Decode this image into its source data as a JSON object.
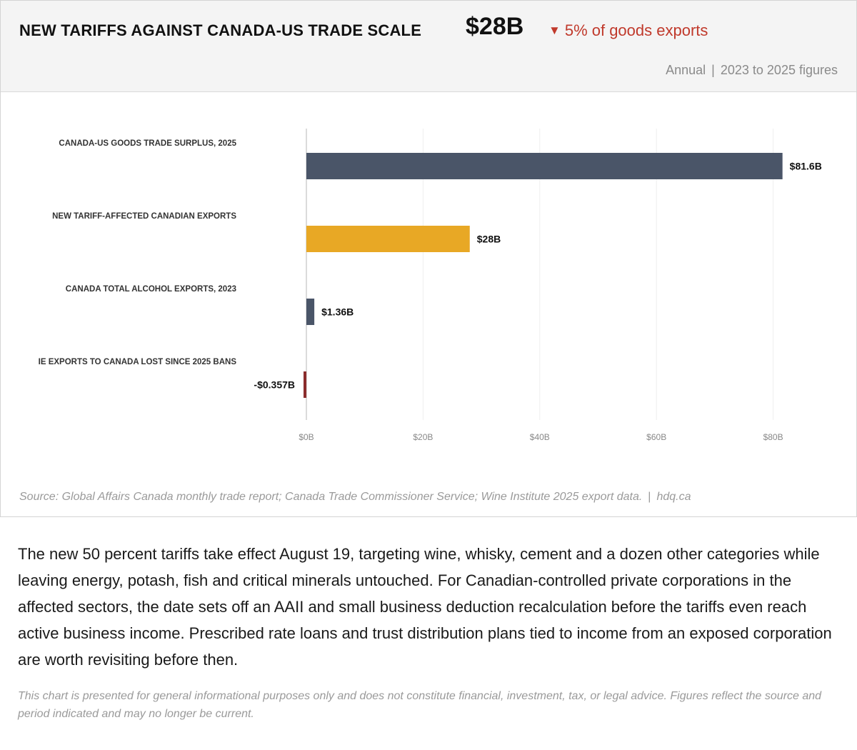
{
  "header": {
    "title": "NEW TARIFFS AGAINST CANADA-US TRADE SCALE",
    "value": "$28B",
    "delta_arrow": "▼",
    "delta_text": "5% of goods exports",
    "period": "Annual",
    "range": "2023 to 2025 figures",
    "delta_color": "#c0392b"
  },
  "chart_data": {
    "type": "bar",
    "orientation": "horizontal",
    "categories": [
      "CANADA-US GOODS TRADE SURPLUS, 2025",
      "NEW TARIFF-AFFECTED CANADIAN EXPORTS",
      "CANADA TOTAL ALCOHOL EXPORTS, 2023",
      "IE EXPORTS TO CANADA LOST SINCE 2025 BANS"
    ],
    "values": [
      81.6,
      28,
      1.36,
      -0.357
    ],
    "value_labels": [
      "$81.6B",
      "$28B",
      "$1.36B",
      "-$0.357B"
    ],
    "colors": [
      "#4a5568",
      "#e8a825",
      "#4a5568",
      "#8b2c2c"
    ],
    "xlim": [
      0,
      90
    ],
    "ticks": [
      0,
      20,
      40,
      60,
      80
    ],
    "tick_labels": [
      "$0B",
      "$20B",
      "$40B",
      "$60B",
      "$80B"
    ],
    "grid": true,
    "title": "",
    "xlabel": "",
    "ylabel": ""
  },
  "source": {
    "text": "Source: Global Affairs Canada monthly trade report; Canada Trade Commissioner Service; Wine Institute 2025 export data.",
    "sep": "|",
    "site": "hdq.ca"
  },
  "body_text": "The new 50 percent tariffs take effect August 19, targeting wine, whisky, cement and a dozen other categories while leaving energy, potash, fish and critical minerals untouched. For Canadian-controlled private corporations in the affected sectors, the date sets off an AAII and small business deduction recalculation before the tariffs even reach active business income. Prescribed rate loans and trust distribution plans tied to income from an exposed corporation are worth revisiting before then.",
  "disclaimer": "This chart is presented for general informational purposes only and does not constitute financial, investment, tax, or legal advice. Figures reflect the source and period indicated and may no longer be current."
}
